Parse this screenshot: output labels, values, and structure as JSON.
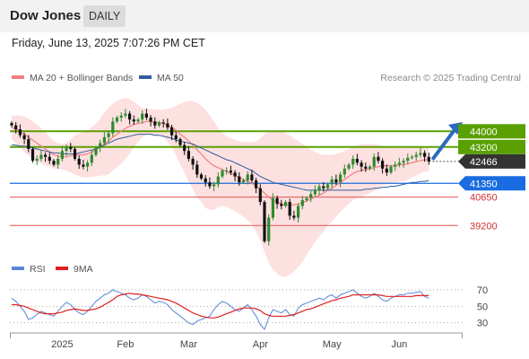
{
  "header": {
    "title": "Dow Jones",
    "period": "DAILY",
    "timestamp": "Friday, June 13, 2025 7:07:26 PM CET"
  },
  "chart_data": [
    {
      "type": "candlestick",
      "title": "",
      "legend": [
        {
          "name": "MA 20 + Bollinger Bands",
          "color": "#f08080"
        },
        {
          "name": "MA 50",
          "color": "#2e5c9e"
        }
      ],
      "credit": "Research © 2025 Trading Central",
      "ylim": [
        37750,
        46300
      ],
      "x_ticks": [
        {
          "label": "2025",
          "index": 12
        },
        {
          "label": "Feb",
          "index": 27
        },
        {
          "label": "Mar",
          "index": 42
        },
        {
          "label": "Apr",
          "index": 59
        },
        {
          "label": "May",
          "index": 76
        },
        {
          "label": "Jun",
          "index": 92
        }
      ],
      "levels": [
        {
          "value": 44000,
          "label": "44000",
          "kind": "resistance",
          "color": "#5aa000"
        },
        {
          "value": 43200,
          "label": "43200",
          "kind": "resistance",
          "color": "#5aa000"
        },
        {
          "value": 42466,
          "label": "42466",
          "kind": "last",
          "color": "#333333"
        },
        {
          "value": 41350,
          "label": "41350",
          "kind": "pivot",
          "color": "#1a6de0"
        },
        {
          "value": 40650,
          "label": "40650",
          "kind": "support",
          "color": "#e05555"
        },
        {
          "value": 39200,
          "label": "39200",
          "kind": "support",
          "color": "#e05555"
        }
      ],
      "close": [
        44300,
        44100,
        43800,
        43600,
        43100,
        42500,
        42600,
        42800,
        42700,
        42500,
        42300,
        42600,
        43000,
        43200,
        43100,
        42600,
        42300,
        42200,
        42400,
        42800,
        43150,
        43400,
        43700,
        43900,
        44500,
        44700,
        44800,
        44900,
        44600,
        44500,
        44600,
        44900,
        44700,
        44500,
        44300,
        44450,
        44400,
        44200,
        43800,
        43600,
        43300,
        43000,
        42600,
        42300,
        41800,
        41600,
        41400,
        41200,
        41300,
        41700,
        42000,
        42000,
        41900,
        41700,
        41400,
        41500,
        41800,
        41500,
        41100,
        40400,
        38400,
        39600,
        40600,
        40300,
        40200,
        40400,
        39700,
        39600,
        40200,
        40500,
        40600,
        40800,
        41000,
        41200,
        41100,
        41300,
        41550,
        41400,
        41800,
        42100,
        42300,
        42600,
        42400,
        42200,
        42100,
        42200,
        42700,
        42500,
        42100,
        41900,
        42200,
        42300,
        42400,
        42500,
        42650,
        42700,
        42800,
        42900,
        42700,
        42466
      ],
      "ma20": [
        44200,
        44100,
        44000,
        43850,
        43700,
        43550,
        43400,
        43250,
        43100,
        42950,
        42800,
        42750,
        42700,
        42700,
        42750,
        42800,
        42800,
        42800,
        42850,
        42950,
        43050,
        43200,
        43350,
        43500,
        43700,
        43850,
        44000,
        44150,
        44250,
        44350,
        44400,
        44450,
        44500,
        44500,
        44450,
        44450,
        44400,
        44300,
        44200,
        44050,
        43850,
        43700,
        43500,
        43300,
        43050,
        42850,
        42600,
        42400,
        42250,
        42150,
        42050,
        41950,
        41850,
        41750,
        41650,
        41550,
        41450,
        41350,
        41200,
        41050,
        40850,
        40650,
        40500,
        40400,
        40300,
        40250,
        40250,
        40250,
        40300,
        40350,
        40450,
        40550,
        40650,
        40750,
        40850,
        41000,
        41100,
        41250,
        41400,
        41550,
        41700,
        41850,
        41950,
        42000,
        42050,
        42100,
        42150,
        42200,
        42250,
        42250,
        42250,
        42250,
        42300,
        42300,
        42350,
        42400,
        42450,
        42500,
        42550,
        42550
      ],
      "bb_upper": [
        44800,
        44800,
        44800,
        44750,
        44650,
        44500,
        44350,
        44150,
        43950,
        43700,
        43500,
        43400,
        43350,
        43400,
        43600,
        43800,
        43900,
        43950,
        44050,
        44200,
        44400,
        44650,
        44950,
        45200,
        45400,
        45550,
        45650,
        45700,
        45650,
        45500,
        45350,
        45200,
        45150,
        45150,
        45100,
        45100,
        45100,
        45150,
        45200,
        45300,
        45400,
        45500,
        45550,
        45550,
        45450,
        45300,
        45100,
        44800,
        44500,
        44150,
        43900,
        43750,
        43650,
        43550,
        43500,
        43450,
        43450,
        43450,
        43500,
        43650,
        43850,
        44000,
        44050,
        44050,
        44000,
        43900,
        43800,
        43650,
        43500,
        43350,
        43200,
        43050,
        42950,
        42850,
        42800,
        42800,
        42800,
        42850,
        42900,
        43000,
        43100,
        43200,
        43300,
        43350,
        43350,
        43350,
        43350,
        43300,
        43250,
        43200,
        43150,
        43150,
        43150,
        43150,
        43150,
        43150,
        43150,
        43150,
        43150,
        43150
      ],
      "bb_lower": [
        43600,
        43400,
        43200,
        42950,
        42750,
        42600,
        42450,
        42350,
        42250,
        42200,
        42100,
        42100,
        42050,
        42000,
        41900,
        41800,
        41700,
        41650,
        41650,
        41700,
        41700,
        41750,
        41750,
        41800,
        42000,
        42150,
        42350,
        42600,
        42850,
        43200,
        43450,
        43700,
        43850,
        43850,
        43800,
        43800,
        43700,
        43450,
        43200,
        42800,
        42300,
        41900,
        41450,
        41050,
        40650,
        40400,
        40100,
        40000,
        40000,
        40150,
        40200,
        40150,
        40050,
        39950,
        39800,
        39650,
        39450,
        39250,
        38900,
        38450,
        37850,
        37300,
        36950,
        36750,
        36600,
        36600,
        36700,
        36850,
        37100,
        37350,
        37700,
        38050,
        38350,
        38650,
        38900,
        39200,
        39400,
        39650,
        39900,
        40100,
        40300,
        40500,
        40600,
        40650,
        40750,
        40850,
        40950,
        41100,
        41250,
        41300,
        41350,
        41350,
        41450,
        41450,
        41550,
        41650,
        41750,
        41850,
        41950,
        41950
      ],
      "ma50": [
        43300,
        43300,
        43250,
        43250,
        43200,
        43150,
        43100,
        43050,
        43000,
        42950,
        42900,
        42900,
        42850,
        42850,
        42850,
        42850,
        42900,
        42950,
        43000,
        43050,
        43100,
        43200,
        43300,
        43400,
        43500,
        43600,
        43650,
        43700,
        43750,
        43800,
        43850,
        43850,
        43850,
        43850,
        43800,
        43800,
        43750,
        43700,
        43650,
        43550,
        43500,
        43450,
        43400,
        43350,
        43250,
        43150,
        43050,
        42950,
        42850,
        42750,
        42650,
        42550,
        42500,
        42400,
        42300,
        42200,
        42100,
        42000,
        41850,
        41700,
        41600,
        41500,
        41400,
        41350,
        41300,
        41250,
        41200,
        41150,
        41100,
        41050,
        41000,
        41000,
        41000,
        41000,
        41000,
        41000,
        41000,
        41000,
        41000,
        41000,
        41000,
        41000,
        41000,
        41000,
        41050,
        41050,
        41100,
        41100,
        41150,
        41150,
        41200,
        41200,
        41250,
        41300,
        41350,
        41400,
        41400,
        41450,
        41450,
        41500
      ]
    },
    {
      "type": "line",
      "legend": [
        {
          "name": "RSI",
          "color": "#5a86d6"
        },
        {
          "name": "9MA",
          "color": "#e02020"
        }
      ],
      "ylim": [
        22,
        82
      ],
      "y_ticks": [
        30,
        50,
        70
      ],
      "rsi": [
        60,
        56,
        50,
        44,
        34,
        36,
        40,
        44,
        42,
        40,
        38,
        44,
        50,
        55,
        52,
        46,
        42,
        40,
        44,
        50,
        56,
        60,
        64,
        66,
        70,
        68,
        66,
        64,
        60,
        58,
        60,
        64,
        62,
        58,
        54,
        56,
        55,
        52,
        46,
        42,
        38,
        34,
        30,
        28,
        32,
        34,
        36,
        38,
        46,
        52,
        56,
        54,
        50,
        46,
        44,
        48,
        52,
        46,
        38,
        28,
        22,
        36,
        46,
        44,
        42,
        46,
        40,
        38,
        48,
        52,
        54,
        56,
        58,
        60,
        58,
        62,
        64,
        60,
        64,
        66,
        68,
        70,
        66,
        62,
        60,
        62,
        66,
        62,
        58,
        56,
        60,
        62,
        64,
        64,
        66,
        66,
        67,
        68,
        62,
        60
      ],
      "ma9": [
        52,
        52,
        51,
        50,
        48,
        46,
        44,
        42,
        41,
        41,
        41,
        42,
        43,
        45,
        46,
        47,
        46,
        45,
        45,
        46,
        47,
        49,
        52,
        55,
        58,
        62,
        64,
        65,
        66,
        65,
        65,
        64,
        63,
        62,
        61,
        60,
        59,
        58,
        56,
        54,
        51,
        48,
        45,
        42,
        40,
        38,
        37,
        36,
        36,
        37,
        39,
        41,
        43,
        45,
        47,
        48,
        48,
        48,
        47,
        45,
        41,
        39,
        38,
        38,
        38,
        38,
        39,
        40,
        42,
        44,
        46,
        47,
        49,
        51,
        53,
        55,
        57,
        58,
        60,
        61,
        62,
        64,
        64,
        64,
        64,
        64,
        64,
        64,
        63,
        62,
        62,
        62,
        62,
        62,
        62,
        62,
        63,
        63,
        63,
        63
      ]
    }
  ]
}
